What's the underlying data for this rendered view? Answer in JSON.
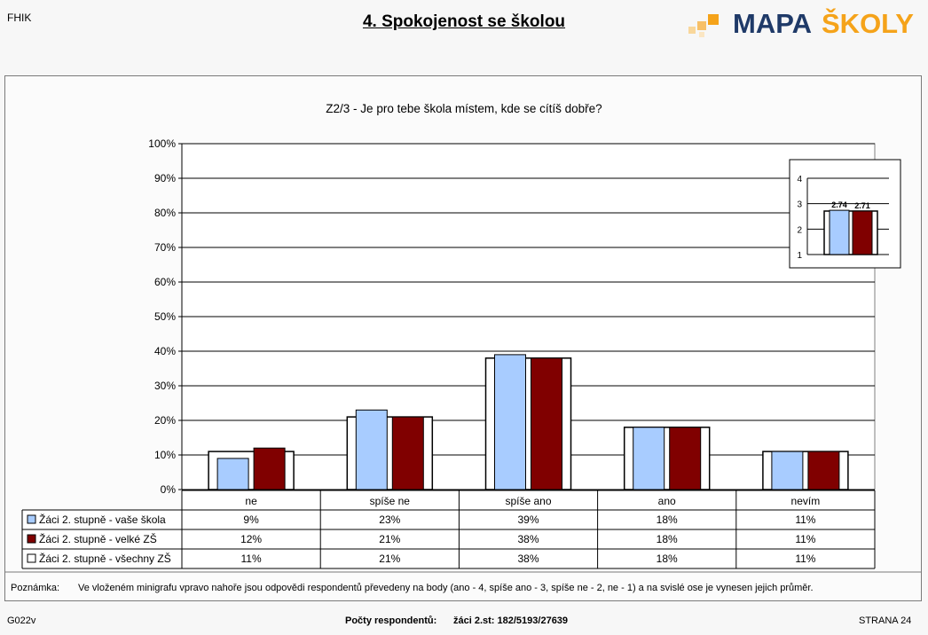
{
  "header": {
    "school_code": "FHIK",
    "title": "4. Spokojenost se školou",
    "logo_text_a": "MAPA",
    "logo_text_b": "ŠKOLY"
  },
  "colors": {
    "series_1": "#a8ccff",
    "series_2": "#800000",
    "series_3": "#ffffff",
    "logo_dark": "#1f3a68",
    "logo_orange": "#f5a31a"
  },
  "chart_data": [
    {
      "type": "bar",
      "title": "Z2/3 - Je pro tebe škola místem, kde se cítíš dobře?",
      "categories": [
        "ne",
        "spíše ne",
        "spíše ano",
        "ano",
        "nevím"
      ],
      "y_ticks": [
        "0%",
        "10%",
        "20%",
        "30%",
        "40%",
        "50%",
        "60%",
        "70%",
        "80%",
        "90%",
        "100%"
      ],
      "ylim": [
        0,
        100
      ],
      "grid": true,
      "series": [
        {
          "name": "Žáci 2. stupně - vaše škola",
          "values": [
            9,
            23,
            39,
            18,
            11
          ],
          "labels": [
            "9%",
            "23%",
            "39%",
            "18%",
            "11%"
          ]
        },
        {
          "name": "Žáci 2. stupně - velké ZŠ",
          "values": [
            12,
            21,
            38,
            18,
            11
          ],
          "labels": [
            "12%",
            "21%",
            "38%",
            "18%",
            "11%"
          ]
        },
        {
          "name": "Žáci 2. stupně - všechny ZŠ",
          "values": [
            11,
            21,
            38,
            18,
            11
          ],
          "labels": [
            "11%",
            "21%",
            "38%",
            "18%",
            "11%"
          ]
        }
      ],
      "data_table": true
    },
    {
      "type": "bar",
      "inset": true,
      "legend_position": "top-right",
      "y_ticks": [
        "1",
        "2",
        "3",
        "4"
      ],
      "ylim": [
        1,
        4
      ],
      "grid": true,
      "series": [
        {
          "name": "Žáci 2. stupně - vaše škola",
          "value": 2.74,
          "label": "2.74"
        },
        {
          "name": "Žáci 2. stupně - velké ZŠ",
          "value": 2.71,
          "label": "2.71"
        },
        {
          "name": "Žáci 2. stupně - všechny ZŠ",
          "value": 2.71
        }
      ]
    }
  ],
  "note": {
    "label": "Poznámka:",
    "text": "Ve vloženém minigrafu vpravo nahoře jsou odpovědi respondentů převedeny na body (ano - 4, spíše ano - 3, spíše ne - 2, ne - 1) a na svislé ose je vynesen jejich průměr."
  },
  "footer": {
    "left": "G022v",
    "respondents_label": "Počty respondentů:",
    "respondents_counts": "žáci 2.st: 182/5193/27639",
    "right": "STRANA 24"
  }
}
